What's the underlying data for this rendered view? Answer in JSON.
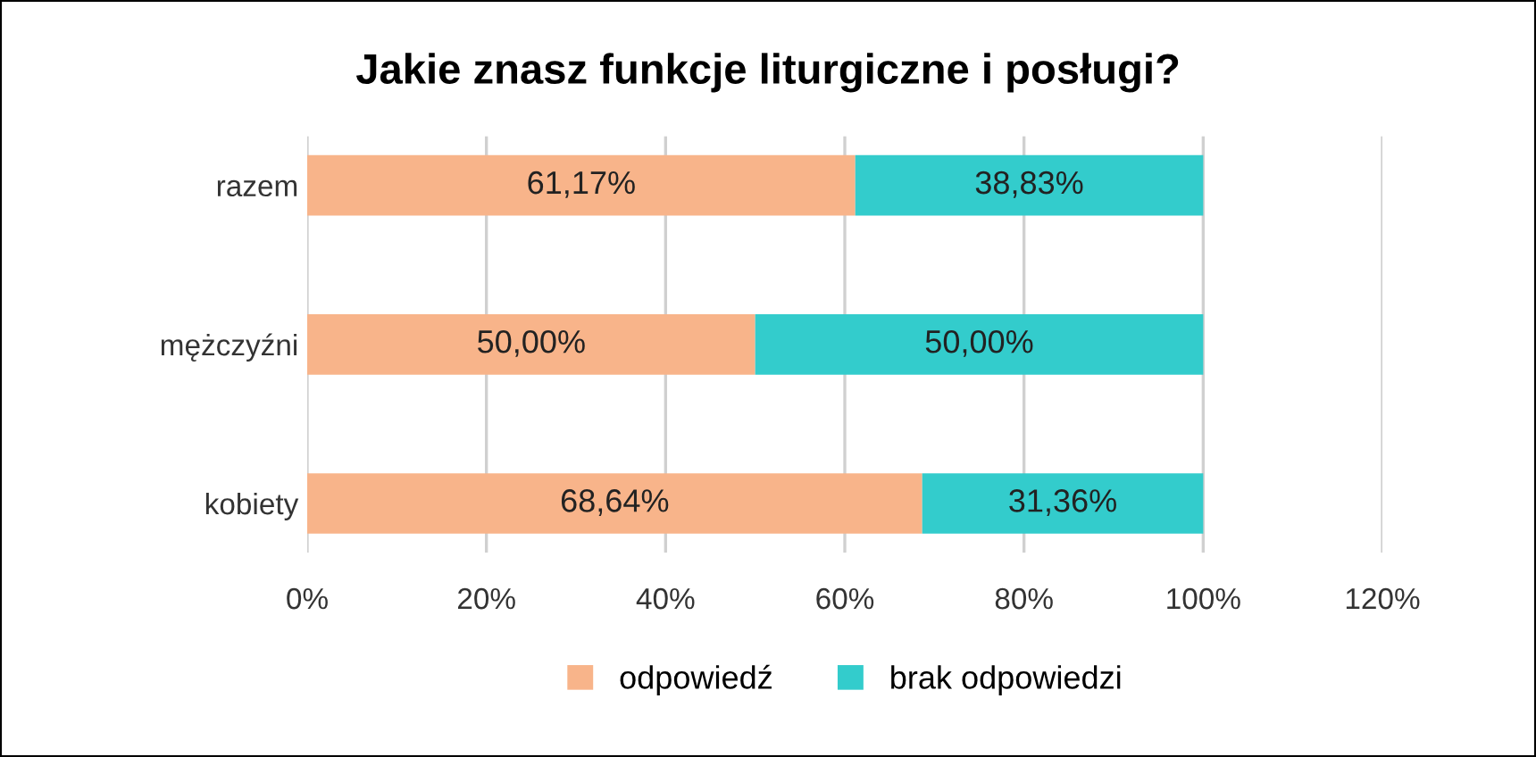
{
  "chart_data": {
    "type": "bar",
    "orientation": "horizontal",
    "stacked": true,
    "title": "Jakie znasz funkcje liturgiczne i posługi?",
    "categories": [
      "razem",
      "mężczyźni",
      "kobiety"
    ],
    "series": [
      {
        "name": "odpowiedź",
        "color": "#f8b48a",
        "values": [
          61.17,
          50.0,
          68.64
        ],
        "value_labels": [
          "61,17%",
          "50,00%",
          "68,64%"
        ]
      },
      {
        "name": "brak odpowiedzi",
        "color": "#33cccc",
        "values": [
          38.83,
          50.0,
          31.36
        ],
        "value_labels": [
          "38,83%",
          "50,00%",
          "31,36%"
        ]
      }
    ],
    "xlim": [
      0,
      120
    ],
    "xticks": [
      {
        "value": 0,
        "label": "0%"
      },
      {
        "value": 20,
        "label": "20%"
      },
      {
        "value": 40,
        "label": "40%"
      },
      {
        "value": 60,
        "label": "60%"
      },
      {
        "value": 80,
        "label": "80%"
      },
      {
        "value": 100,
        "label": "100%"
      },
      {
        "value": 120,
        "label": "120%"
      }
    ],
    "grid": "x",
    "legend": "bottom"
  }
}
